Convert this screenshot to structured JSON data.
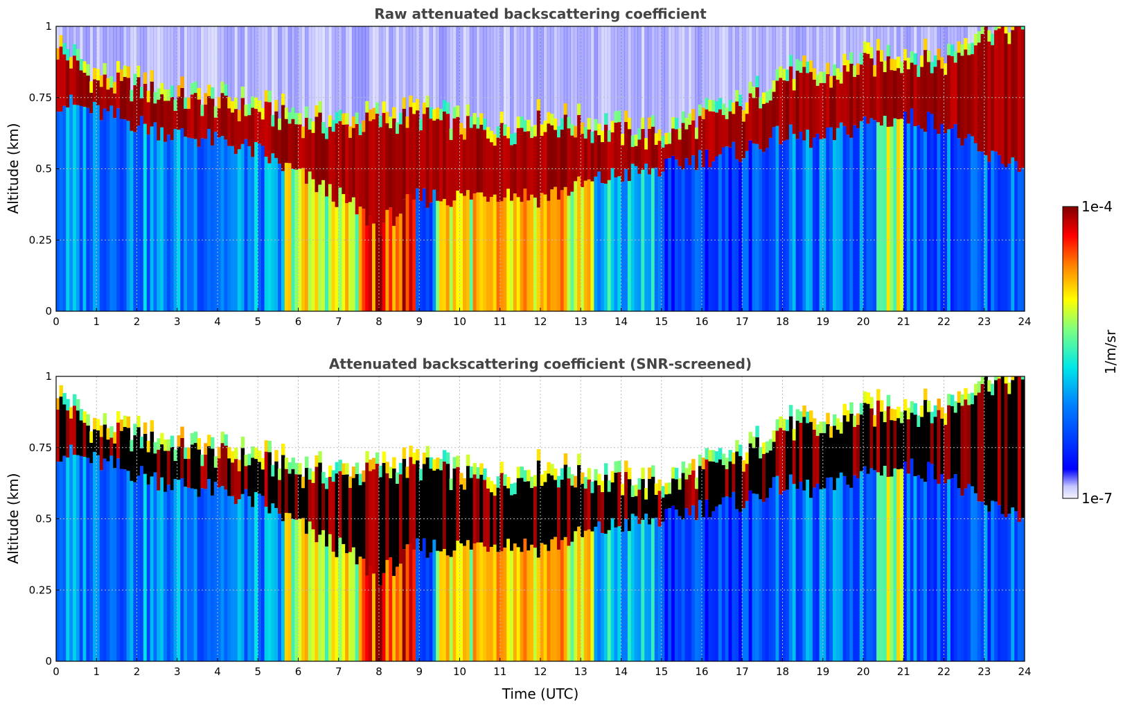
{
  "chart_data": [
    {
      "type": "heatmap",
      "title": "Raw attenuated backscattering coefficient",
      "xlabel": "",
      "ylabel": "Altitude (km)",
      "xlim": [
        0,
        24
      ],
      "ylim": [
        0,
        1
      ],
      "x_ticks": [
        "0",
        "1",
        "2",
        "3",
        "4",
        "5",
        "6",
        "7",
        "8",
        "9",
        "10",
        "11",
        "12",
        "13",
        "14",
        "15",
        "16",
        "17",
        "18",
        "19",
        "20",
        "21",
        "22",
        "23",
        "24"
      ],
      "y_ticks": [
        "0",
        "0.25",
        "0.5",
        "0.75",
        "1"
      ],
      "grid": true,
      "screened": false,
      "layer_top_km_hourly": [
        0.92,
        0.8,
        0.78,
        0.74,
        0.72,
        0.7,
        0.66,
        0.64,
        0.66,
        0.68,
        0.64,
        0.62,
        0.66,
        0.64,
        0.62,
        0.6,
        0.66,
        0.7,
        0.82,
        0.8,
        0.86,
        0.88,
        0.86,
        0.98,
        0.98
      ],
      "mixed_layer_top_km_hourly": [
        0.74,
        0.7,
        0.66,
        0.62,
        0.6,
        0.56,
        0.48,
        0.4,
        0.3,
        0.4,
        0.4,
        0.42,
        0.4,
        0.44,
        0.48,
        0.5,
        0.54,
        0.56,
        0.62,
        0.6,
        0.66,
        0.68,
        0.66,
        0.54,
        0.52
      ]
    },
    {
      "type": "heatmap",
      "title": "Attenuated backscattering coefficient (SNR-screened)",
      "xlabel": "Time (UTC)",
      "ylabel": "Altitude (km)",
      "xlim": [
        0,
        24
      ],
      "ylim": [
        0,
        1
      ],
      "x_ticks": [
        "0",
        "1",
        "2",
        "3",
        "4",
        "5",
        "6",
        "7",
        "8",
        "9",
        "10",
        "11",
        "12",
        "13",
        "14",
        "15",
        "16",
        "17",
        "18",
        "19",
        "20",
        "21",
        "22",
        "23",
        "24"
      ],
      "y_ticks": [
        "0",
        "0.25",
        "0.5",
        "0.75",
        "1"
      ],
      "grid": true,
      "screened": true,
      "layer_top_km_hourly": [
        0.92,
        0.8,
        0.78,
        0.74,
        0.72,
        0.7,
        0.66,
        0.64,
        0.66,
        0.68,
        0.64,
        0.62,
        0.66,
        0.64,
        0.62,
        0.6,
        0.66,
        0.7,
        0.82,
        0.8,
        0.86,
        0.88,
        0.86,
        0.98,
        0.98
      ],
      "mixed_layer_top_km_hourly": [
        0.74,
        0.7,
        0.66,
        0.62,
        0.6,
        0.56,
        0.48,
        0.4,
        0.3,
        0.4,
        0.4,
        0.42,
        0.4,
        0.44,
        0.48,
        0.5,
        0.54,
        0.56,
        0.62,
        0.6,
        0.66,
        0.68,
        0.66,
        0.54,
        0.52
      ]
    }
  ],
  "colorbar": {
    "max_label": "1e-4",
    "min_label": "1e-7",
    "unit_label": "1/m/sr",
    "scale": "log",
    "range": [
      1e-07,
      0.0001
    ]
  }
}
